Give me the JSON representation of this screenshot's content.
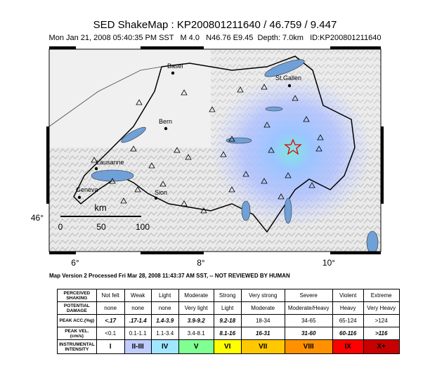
{
  "title": "SED ShakeMap : KP200801211640 / 46.759 / 9.447",
  "subtitle": "Mon Jan 21, 2008 05:40:35 PM SST   M 4.0   N46.76 E9.45  Depth: 7.0km   ID:KP200801211640",
  "map": {
    "cities": [
      "Basel",
      "St.Gallen",
      "Bern",
      "Lausanne",
      "Geneva",
      "Sion"
    ],
    "lat_labels": [
      "46°"
    ],
    "lon_labels": [
      "6°",
      "8°",
      "10°"
    ],
    "scale": {
      "unit": "km",
      "ticks": [
        "0",
        "50",
        "100"
      ]
    }
  },
  "footnote": "Map Version 2 Processed Fri Mar 28, 2008 11:43:37 AM SST, -- NOT REVIEWED BY HUMAN",
  "table": {
    "rows": [
      [
        "PERCEIVED SHAKING",
        "Not felt",
        "Weak",
        "Light",
        "Moderate",
        "Strong",
        "Very strong",
        "Severe",
        "Violent",
        "Extreme"
      ],
      [
        "POTENTIAL DAMAGE",
        "none",
        "none",
        "none",
        "Very light",
        "Light",
        "Moderate",
        "Moderate/Heavy",
        "Heavy",
        "Very Heavy"
      ],
      [
        "PEAK ACC.(%g)",
        "<.17",
        ".17-1.4",
        "1.4-3.9",
        "3.9-9.2",
        "9.2-18",
        "18-34",
        "34-65",
        "65-124",
        ">124"
      ],
      [
        "PEAK VEL.(cm/s)",
        "<0.1",
        "0.1-1.1",
        "1.1-3.4",
        "3.4-8.1",
        "8.1-16",
        "16-31",
        "31-60",
        "60-116",
        ">116"
      ],
      [
        "INSTRUMENTAL INTENSITY",
        "I",
        "II-III",
        "IV",
        "V",
        "VI",
        "VII",
        "VIII",
        "IX",
        "X+"
      ]
    ],
    "intensity_colors": [
      "#ffffff",
      "#bfccff",
      "#a0e6ff",
      "#80ff93",
      "#ffff00",
      "#ffc800",
      "#ff9100",
      "#ff0000",
      "#c80000"
    ]
  }
}
